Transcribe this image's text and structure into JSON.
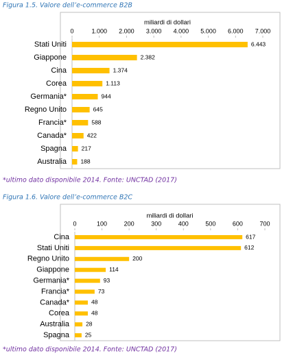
{
  "chart_data": [
    {
      "type": "bar",
      "orientation": "horizontal",
      "title": "Figura 1.5. Valore dell’e-commerce B2B",
      "xlabel": "miliardi di dollari",
      "categories": [
        "Stati Uniti",
        "Giappone",
        "Cina",
        "Corea",
        "Germania*",
        "Regno Unito",
        "Francia*",
        "Canada*",
        "Spagna",
        "Australia"
      ],
      "values": [
        6443,
        2382,
        1374,
        1113,
        944,
        645,
        588,
        422,
        217,
        188
      ],
      "value_labels": [
        "6.443",
        "2.382",
        "1.374",
        "1.113",
        "944",
        "645",
        "588",
        "422",
        "217",
        "188"
      ],
      "color": "#ffc000",
      "xlim": [
        0,
        7000
      ],
      "xticks": [
        0,
        {
          "value": 1000,
          "label": "1.000"
        },
        {
          "value": 2000,
          "label": "2.000"
        },
        {
          "value": 3000,
          "label": "3.000"
        },
        {
          "value": 4000,
          "label": "4.000"
        },
        {
          "value": 5000,
          "label": "5.000"
        },
        {
          "value": 6000,
          "label": "6.000"
        },
        {
          "value": 7000,
          "label": "7.000"
        }
      ],
      "grid": false,
      "footnote": "*ultimo dato disponibile 2014. Fonte: UNCTAD (2017)"
    },
    {
      "type": "bar",
      "orientation": "horizontal",
      "title": "Figura 1.6. Valore dell’e-commerce B2C",
      "xlabel": "miliardi di dollari",
      "categories": [
        "Cina",
        "Stati Uniti",
        "Regno Unito",
        "Giappone",
        "Germania*",
        "Francia*",
        "Canada*",
        "Corea",
        "Australia",
        "Spagna"
      ],
      "values": [
        617,
        612,
        200,
        114,
        93,
        73,
        48,
        48,
        28,
        25
      ],
      "color": "#ffc000",
      "xlim": [
        0,
        700
      ],
      "xticks": [
        0,
        100,
        200,
        300,
        400,
        500,
        600,
        700
      ],
      "grid": false,
      "footnote": "*ultimo dato disponibile 2014. Fonte: UNCTAD (2017)"
    }
  ]
}
